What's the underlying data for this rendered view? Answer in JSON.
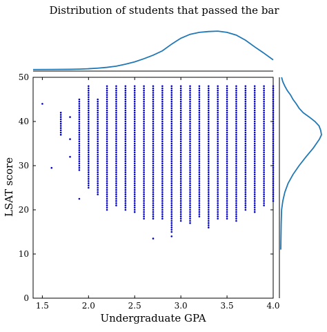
{
  "chart_data": {
    "type": "scatter",
    "title": "Distribution of students that passed the bar",
    "xlabel": "Undergraduate GPA",
    "ylabel": "LSAT score",
    "xlim": [
      1.4,
      4.0
    ],
    "ylim": [
      0,
      50
    ],
    "x_ticks": [
      1.5,
      2.0,
      2.5,
      3.0,
      3.5,
      4.0
    ],
    "y_ticks": [
      0,
      10,
      20,
      30,
      40,
      50
    ],
    "x_tick_labels": [
      "1.5",
      "2.0",
      "2.5",
      "3.0",
      "3.5",
      "4.0"
    ],
    "y_tick_labels": [
      "0",
      "10",
      "20",
      "30",
      "40",
      "50"
    ],
    "grid": false,
    "marker_color": "#0000cc",
    "kde_color": "#1f77b4",
    "outlier_points": [
      {
        "x": 1.5,
        "y": 44
      },
      {
        "x": 1.6,
        "y": 29.5
      },
      {
        "x": 1.8,
        "y": 32
      },
      {
        "x": 1.8,
        "y": 41
      },
      {
        "x": 1.9,
        "y": 22.5
      },
      {
        "x": 2.7,
        "y": 13.5
      },
      {
        "x": 2.9,
        "y": 14
      }
    ],
    "columns": [
      {
        "x": 1.7,
        "ymin": 37,
        "ymax": 42
      },
      {
        "x": 1.8,
        "ymin": 36,
        "ymax": 36
      },
      {
        "x": 1.9,
        "ymin": 29,
        "ymax": 45
      },
      {
        "x": 2.0,
        "ymin": 25,
        "ymax": 48
      },
      {
        "x": 2.1,
        "ymin": 23.5,
        "ymax": 45
      },
      {
        "x": 2.2,
        "ymin": 20,
        "ymax": 48
      },
      {
        "x": 2.3,
        "ymin": 21,
        "ymax": 48
      },
      {
        "x": 2.4,
        "ymin": 20,
        "ymax": 48
      },
      {
        "x": 2.5,
        "ymin": 19.5,
        "ymax": 48
      },
      {
        "x": 2.6,
        "ymin": 18,
        "ymax": 48
      },
      {
        "x": 2.7,
        "ymin": 18,
        "ymax": 48
      },
      {
        "x": 2.8,
        "ymin": 18,
        "ymax": 48
      },
      {
        "x": 2.9,
        "ymin": 15,
        "ymax": 48
      },
      {
        "x": 3.0,
        "ymin": 17.5,
        "ymax": 48
      },
      {
        "x": 3.1,
        "ymin": 17,
        "ymax": 48
      },
      {
        "x": 3.2,
        "ymin": 18.5,
        "ymax": 48
      },
      {
        "x": 3.3,
        "ymin": 16,
        "ymax": 48
      },
      {
        "x": 3.4,
        "ymin": 18,
        "ymax": 48
      },
      {
        "x": 3.5,
        "ymin": 18,
        "ymax": 48
      },
      {
        "x": 3.6,
        "ymin": 17.5,
        "ymax": 48
      },
      {
        "x": 3.7,
        "ymin": 20,
        "ymax": 48
      },
      {
        "x": 3.8,
        "ymin": 19.5,
        "ymax": 48
      },
      {
        "x": 3.9,
        "ymin": 21,
        "ymax": 48
      },
      {
        "x": 4.0,
        "ymin": 22,
        "ymax": 48
      }
    ],
    "kde_x": [
      [
        1.4,
        0.005
      ],
      [
        1.6,
        0.006
      ],
      [
        1.8,
        0.01
      ],
      [
        1.9,
        0.015
      ],
      [
        2.0,
        0.025
      ],
      [
        2.1,
        0.04
      ],
      [
        2.2,
        0.06
      ],
      [
        2.3,
        0.09
      ],
      [
        2.4,
        0.14
      ],
      [
        2.5,
        0.2
      ],
      [
        2.6,
        0.28
      ],
      [
        2.7,
        0.37
      ],
      [
        2.8,
        0.48
      ],
      [
        2.9,
        0.65
      ],
      [
        3.0,
        0.8
      ],
      [
        3.1,
        0.9
      ],
      [
        3.2,
        0.95
      ],
      [
        3.3,
        0.97
      ],
      [
        3.4,
        0.98
      ],
      [
        3.5,
        0.95
      ],
      [
        3.6,
        0.88
      ],
      [
        3.7,
        0.75
      ],
      [
        3.8,
        0.58
      ],
      [
        3.9,
        0.42
      ],
      [
        4.0,
        0.25
      ]
    ],
    "kde_y": [
      [
        11,
        0.0
      ],
      [
        17,
        0.01
      ],
      [
        20,
        0.02
      ],
      [
        22,
        0.05
      ],
      [
        24,
        0.1
      ],
      [
        26,
        0.18
      ],
      [
        28,
        0.3
      ],
      [
        30,
        0.45
      ],
      [
        32,
        0.62
      ],
      [
        34,
        0.8
      ],
      [
        36,
        0.95
      ],
      [
        37,
        1.0
      ],
      [
        38,
        0.98
      ],
      [
        39,
        0.94
      ],
      [
        40,
        0.84
      ],
      [
        41,
        0.7
      ],
      [
        42,
        0.55
      ],
      [
        43,
        0.45
      ],
      [
        44,
        0.38
      ],
      [
        45,
        0.3
      ],
      [
        46,
        0.24
      ],
      [
        47,
        0.16
      ],
      [
        48,
        0.1
      ],
      [
        49,
        0.05
      ],
      [
        50,
        0.02
      ]
    ]
  }
}
